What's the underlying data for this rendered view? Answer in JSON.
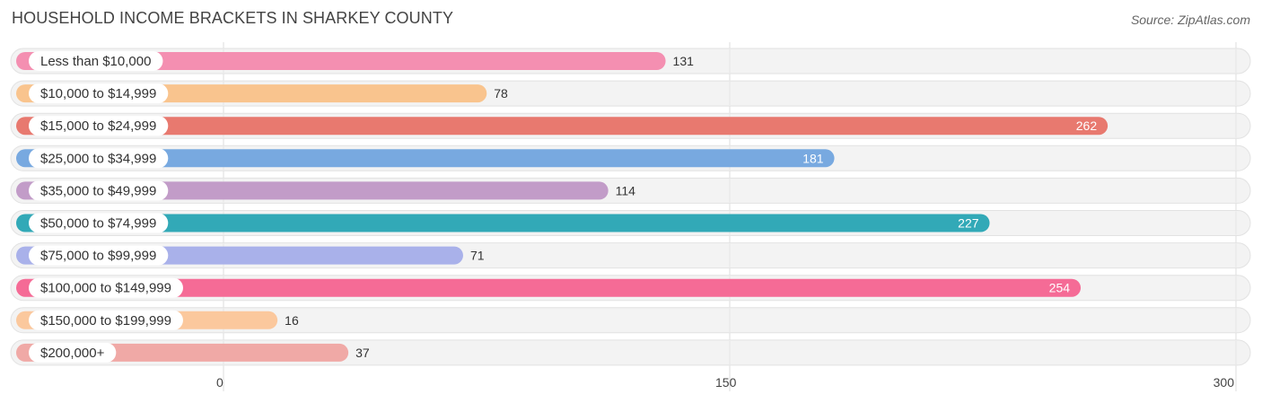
{
  "title": "HOUSEHOLD INCOME BRACKETS IN SHARKEY COUNTY",
  "source": "Source: ZipAtlas.com",
  "chart_data": {
    "type": "bar",
    "orientation": "horizontal",
    "title": "HOUSEHOLD INCOME BRACKETS IN SHARKEY COUNTY",
    "categories": [
      "Less than $10,000",
      "$10,000 to $14,999",
      "$15,000 to $24,999",
      "$25,000 to $34,999",
      "$35,000 to $49,999",
      "$50,000 to $74,999",
      "$75,000 to $99,999",
      "$100,000 to $149,999",
      "$150,000 to $199,999",
      "$200,000+"
    ],
    "values": [
      131,
      78,
      262,
      181,
      114,
      227,
      71,
      254,
      16,
      37
    ],
    "colors": [
      "#f48fb1",
      "#f9c48e",
      "#e8796f",
      "#78a9e0",
      "#c29cc8",
      "#32a9b7",
      "#a9b1ea",
      "#f56b96",
      "#fbc89d",
      "#f0a9a6"
    ],
    "xlim": [
      0,
      300
    ],
    "xticks": [
      0,
      150,
      300
    ],
    "xtick_labels": [
      "0",
      "150",
      "300"
    ],
    "grid": true,
    "value_label_inside_color": "#ffffff",
    "value_label_outside_color": "#333333"
  }
}
